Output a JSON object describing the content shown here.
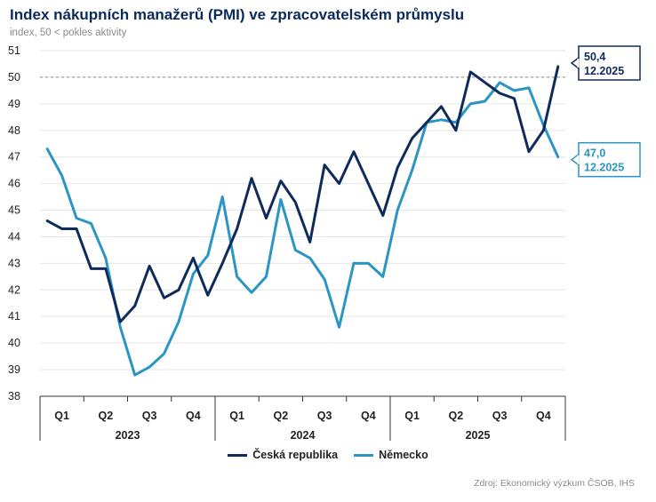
{
  "chart_data": {
    "type": "line",
    "title": "Index nákupních manažerů (PMI) ve zpracovatelském průmyslu",
    "subtitle": "index, 50 < pokles aktivity",
    "ylim": [
      38,
      51
    ],
    "yticks": [
      "38",
      "39",
      "40",
      "41",
      "42",
      "43",
      "44",
      "45",
      "46",
      "47",
      "48",
      "49",
      "50",
      "51"
    ],
    "reference_line": 50,
    "x": [
      "01/2023",
      "02/2023",
      "03/2023",
      "04/2023",
      "05/2023",
      "06/2023",
      "07/2023",
      "08/2023",
      "09/2023",
      "10/2023",
      "11/2023",
      "12/2023",
      "01/2024",
      "02/2024",
      "03/2024",
      "04/2024",
      "05/2024",
      "06/2024",
      "07/2024",
      "08/2024",
      "09/2024",
      "10/2024",
      "11/2024",
      "12/2024",
      "01/2025",
      "02/2025",
      "03/2025",
      "04/2025",
      "05/2025",
      "06/2025",
      "07/2025",
      "08/2025",
      "09/2025",
      "10/2025",
      "11/2025",
      "12/2025"
    ],
    "quarter_labels": [
      "Q1",
      "Q2",
      "Q3",
      "Q4",
      "Q1",
      "Q2",
      "Q3",
      "Q4",
      "Q1",
      "Q2",
      "Q3",
      "Q4"
    ],
    "year_labels": [
      "2023",
      "2024",
      "2025"
    ],
    "series": [
      {
        "name": "Česká republika",
        "color": "#0f2b5b",
        "values": [
          44.6,
          44.3,
          44.3,
          42.8,
          42.8,
          40.8,
          41.4,
          42.9,
          41.7,
          42.0,
          43.2,
          41.8,
          43.0,
          44.3,
          46.2,
          44.7,
          46.1,
          45.3,
          43.8,
          46.7,
          46.0,
          47.2,
          46.0,
          44.8,
          46.6,
          47.7,
          48.3,
          48.9,
          48.0,
          50.2,
          49.8,
          49.4,
          49.2,
          47.2,
          48.0,
          50.4
        ]
      },
      {
        "name": "Německo",
        "color": "#2b95c4",
        "values": [
          47.3,
          46.3,
          44.7,
          44.5,
          43.2,
          40.6,
          38.8,
          39.1,
          39.6,
          40.8,
          42.6,
          43.3,
          45.5,
          42.5,
          41.9,
          42.5,
          45.4,
          43.5,
          43.2,
          42.4,
          40.6,
          43.0,
          43.0,
          42.5,
          45.0,
          46.5,
          48.3,
          48.4,
          48.3,
          49.0,
          49.1,
          49.8,
          49.5,
          49.6,
          48.2,
          47.0
        ]
      }
    ],
    "end_labels": [
      {
        "value": "50,4",
        "date": "12.2025",
        "series": "Česká republika"
      },
      {
        "value": "47,0",
        "date": "12.2025",
        "series": "Německo"
      }
    ]
  },
  "source": "Zdroj: Ekonomický výzkum ČSOB, IHS"
}
